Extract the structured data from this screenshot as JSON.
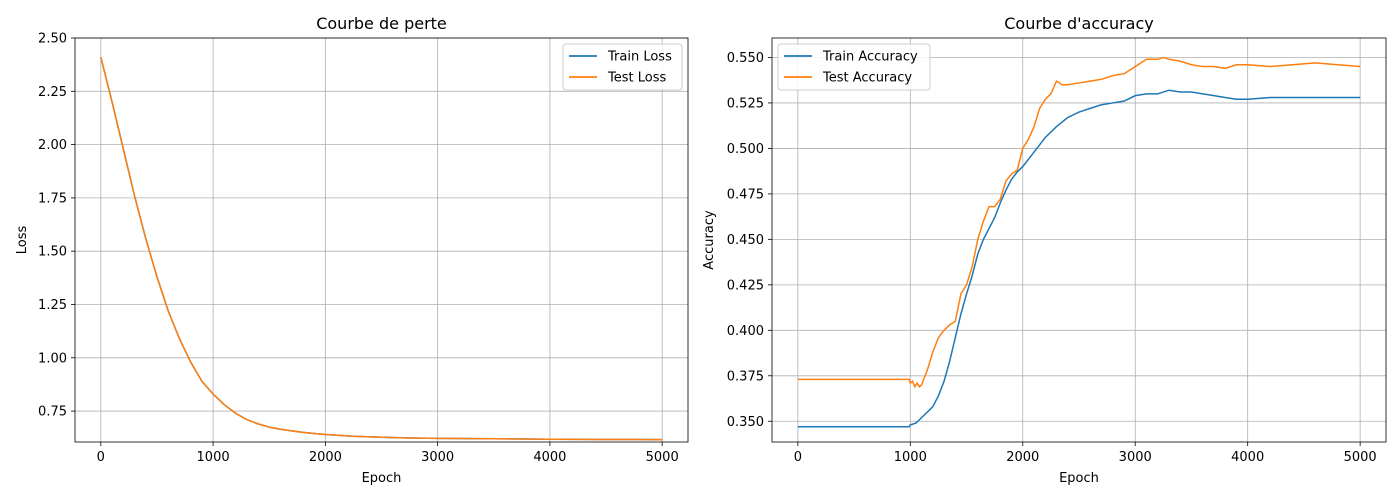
{
  "chart_data": [
    {
      "type": "line",
      "title": "Courbe de perte",
      "xlabel": "Epoch",
      "ylabel": "Loss",
      "xlim": [
        -230,
        5230
      ],
      "ylim": [
        0.605,
        2.5
      ],
      "xticks": [
        0,
        1000,
        2000,
        3000,
        4000,
        5000
      ],
      "xtick_labels": [
        "0",
        "1000",
        "2000",
        "3000",
        "4000",
        "5000"
      ],
      "yticks": [
        0.75,
        1.0,
        1.25,
        1.5,
        1.75,
        2.0,
        2.25,
        2.5
      ],
      "ytick_labels": [
        "0.75",
        "1.00",
        "1.25",
        "1.50",
        "1.75",
        "2.00",
        "2.25",
        "2.50"
      ],
      "grid": true,
      "legend_position": "upper-right",
      "series": [
        {
          "name": "Train Loss",
          "color": "#1f77b4",
          "x": [
            0,
            100,
            200,
            300,
            400,
            500,
            600,
            700,
            800,
            900,
            1000,
            1100,
            1200,
            1300,
            1400,
            1500,
            1600,
            1700,
            1800,
            1900,
            2000,
            2250,
            2500,
            2750,
            3000,
            3500,
            4000,
            4500,
            5000
          ],
          "y": [
            2.41,
            2.2,
            1.98,
            1.76,
            1.56,
            1.38,
            1.22,
            1.09,
            0.98,
            0.89,
            0.83,
            0.78,
            0.74,
            0.71,
            0.69,
            0.675,
            0.665,
            0.657,
            0.65,
            0.645,
            0.64,
            0.632,
            0.627,
            0.624,
            0.622,
            0.62,
            0.618,
            0.617,
            0.616
          ]
        },
        {
          "name": "Test Loss",
          "color": "#ff7f0e",
          "x": [
            0,
            100,
            200,
            300,
            400,
            500,
            600,
            700,
            800,
            900,
            1000,
            1100,
            1200,
            1300,
            1400,
            1500,
            1600,
            1700,
            1800,
            1900,
            2000,
            2250,
            2500,
            2750,
            3000,
            3500,
            4000,
            4500,
            5000
          ],
          "y": [
            2.41,
            2.2,
            1.98,
            1.76,
            1.56,
            1.38,
            1.22,
            1.09,
            0.98,
            0.89,
            0.83,
            0.78,
            0.74,
            0.71,
            0.69,
            0.675,
            0.665,
            0.657,
            0.65,
            0.645,
            0.64,
            0.632,
            0.627,
            0.624,
            0.622,
            0.62,
            0.618,
            0.617,
            0.616
          ]
        }
      ]
    },
    {
      "type": "line",
      "title": "Courbe d'accuracy",
      "xlabel": "Epoch",
      "ylabel": "Accuracy",
      "xlim": [
        -230,
        5230
      ],
      "ylim": [
        0.3386,
        0.5607
      ],
      "xticks": [
        0,
        1000,
        2000,
        3000,
        4000,
        5000
      ],
      "xtick_labels": [
        "0",
        "1000",
        "2000",
        "3000",
        "4000",
        "5000"
      ],
      "yticks": [
        0.35,
        0.375,
        0.4,
        0.425,
        0.45,
        0.475,
        0.5,
        0.525,
        0.55
      ],
      "ytick_labels": [
        "0.350",
        "0.375",
        "0.400",
        "0.425",
        "0.450",
        "0.475",
        "0.500",
        "0.525",
        "0.550"
      ],
      "grid": true,
      "legend_position": "upper-left",
      "series": [
        {
          "name": "Train Accuracy",
          "color": "#1f77b4",
          "x": [
            0,
            990,
            1000,
            1050,
            1100,
            1150,
            1200,
            1250,
            1300,
            1350,
            1400,
            1450,
            1500,
            1550,
            1600,
            1650,
            1700,
            1750,
            1800,
            1850,
            1900,
            1950,
            2000,
            2050,
            2100,
            2150,
            2200,
            2300,
            2400,
            2500,
            2600,
            2700,
            2800,
            2900,
            3000,
            3100,
            3200,
            3300,
            3400,
            3500,
            3600,
            3700,
            3800,
            3900,
            4000,
            4200,
            4400,
            4600,
            4800,
            5000
          ],
          "y": [
            0.347,
            0.347,
            0.348,
            0.349,
            0.352,
            0.355,
            0.358,
            0.364,
            0.372,
            0.383,
            0.396,
            0.409,
            0.42,
            0.43,
            0.442,
            0.45,
            0.456,
            0.462,
            0.47,
            0.477,
            0.483,
            0.487,
            0.49,
            0.494,
            0.498,
            0.502,
            0.506,
            0.512,
            0.517,
            0.52,
            0.522,
            0.524,
            0.525,
            0.526,
            0.529,
            0.53,
            0.53,
            0.532,
            0.531,
            0.531,
            0.53,
            0.529,
            0.528,
            0.527,
            0.527,
            0.528,
            0.528,
            0.528,
            0.528,
            0.528
          ]
        },
        {
          "name": "Test Accuracy",
          "color": "#ff7f0e",
          "x": [
            0,
            990,
            1000,
            1020,
            1040,
            1060,
            1080,
            1100,
            1150,
            1200,
            1250,
            1300,
            1350,
            1400,
            1450,
            1500,
            1550,
            1600,
            1650,
            1700,
            1750,
            1800,
            1850,
            1900,
            1950,
            2000,
            2050,
            2100,
            2150,
            2200,
            2250,
            2300,
            2350,
            2400,
            2500,
            2600,
            2700,
            2800,
            2900,
            3000,
            3100,
            3200,
            3250,
            3300,
            3400,
            3500,
            3600,
            3700,
            3800,
            3900,
            4000,
            4200,
            4400,
            4600,
            4800,
            5000
          ],
          "y": [
            0.373,
            0.373,
            0.371,
            0.372,
            0.369,
            0.371,
            0.369,
            0.37,
            0.378,
            0.388,
            0.396,
            0.4,
            0.403,
            0.405,
            0.42,
            0.425,
            0.435,
            0.45,
            0.46,
            0.468,
            0.468,
            0.472,
            0.482,
            0.486,
            0.488,
            0.5,
            0.505,
            0.512,
            0.522,
            0.527,
            0.53,
            0.537,
            0.535,
            0.535,
            0.536,
            0.537,
            0.538,
            0.54,
            0.541,
            0.545,
            0.549,
            0.549,
            0.55,
            0.549,
            0.548,
            0.546,
            0.545,
            0.545,
            0.544,
            0.546,
            0.546,
            0.545,
            0.546,
            0.547,
            0.546,
            0.545
          ]
        }
      ]
    }
  ]
}
